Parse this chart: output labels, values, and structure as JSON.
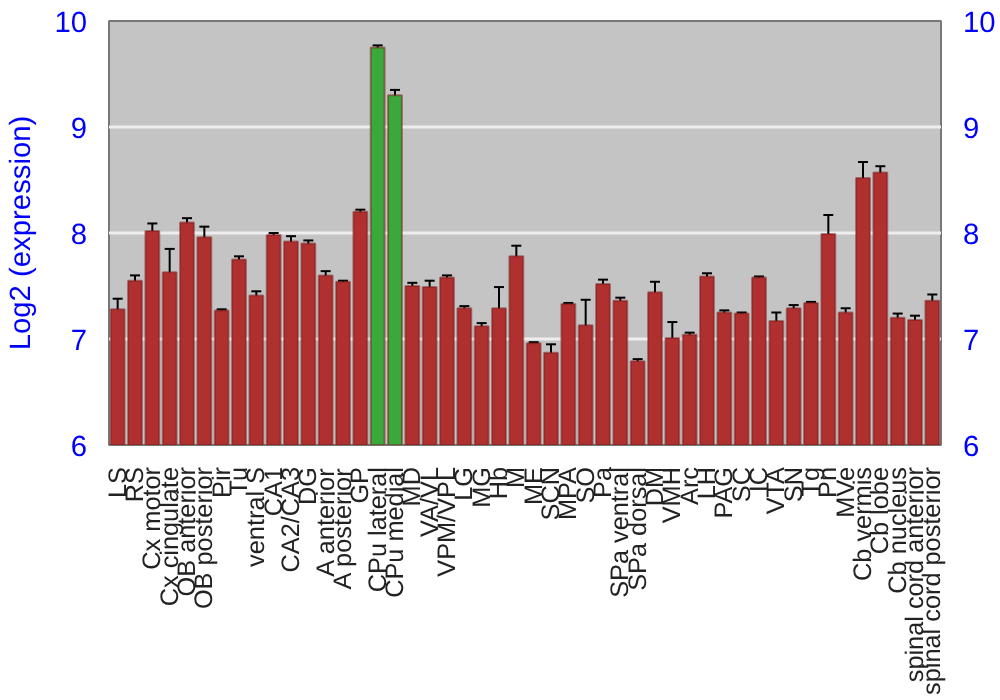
{
  "chart_data": {
    "type": "bar",
    "ylabel": "Log2 (expression)",
    "categories": [
      "LS",
      "RS",
      "Cx motor",
      "Cx cingulate",
      "OB anterior",
      "OB posterior",
      "Pir",
      "Tu",
      "ventral S",
      "CA1",
      "CA2/CA3",
      "DG",
      "A anterior",
      "A posterior",
      "GP",
      "CPu lateral",
      "CPu medial",
      "MD",
      "VA/VL",
      "VPM/VPL",
      "LG",
      "MG",
      "Hb",
      "M",
      "ME",
      "SCN",
      "MPA",
      "SO",
      "Pa",
      "SPa ventral",
      "SPa dorsal",
      "DM",
      "VMH",
      "Arc",
      "LH",
      "PAG",
      "SC",
      "IC",
      "VTA",
      "SN",
      "Tg",
      "Pn",
      "MVe",
      "Cb vermis",
      "Cb lobe",
      "Cb nucleus",
      "spinal cord anterior",
      "spinal cord posterior"
    ],
    "values": [
      7.28,
      7.55,
      8.02,
      7.63,
      8.1,
      7.96,
      7.27,
      7.75,
      7.41,
      7.98,
      7.92,
      7.9,
      7.6,
      7.54,
      8.2,
      9.75,
      9.3,
      7.5,
      7.49,
      7.58,
      7.29,
      7.12,
      7.29,
      7.78,
      6.96,
      6.87,
      7.33,
      7.13,
      7.52,
      7.36,
      6.79,
      7.44,
      7.01,
      7.04,
      7.59,
      7.25,
      7.24,
      7.58,
      7.17,
      7.29,
      7.34,
      7.99,
      7.25,
      8.52,
      8.57,
      7.2,
      7.18,
      7.36
    ],
    "errors": [
      0.1,
      0.05,
      0.07,
      0.22,
      0.04,
      0.1,
      0.01,
      0.03,
      0.04,
      0.02,
      0.05,
      0.03,
      0.04,
      0.01,
      0.02,
      0.02,
      0.05,
      0.03,
      0.06,
      0.02,
      0.02,
      0.03,
      0.2,
      0.1,
      0.01,
      0.08,
      0.01,
      0.24,
      0.04,
      0.03,
      0.02,
      0.1,
      0.15,
      0.02,
      0.03,
      0.02,
      0.01,
      0.01,
      0.08,
      0.03,
      0.01,
      0.18,
      0.04,
      0.15,
      0.06,
      0.04,
      0.04,
      0.06
    ],
    "colors": [
      "#b03030",
      "#b03030",
      "#b03030",
      "#b03030",
      "#b03030",
      "#b03030",
      "#b03030",
      "#b03030",
      "#b03030",
      "#b03030",
      "#b03030",
      "#b03030",
      "#b03030",
      "#b03030",
      "#b03030",
      "#3aa83a",
      "#3aa83a",
      "#b03030",
      "#b03030",
      "#b03030",
      "#b03030",
      "#b03030",
      "#b03030",
      "#b03030",
      "#b03030",
      "#b03030",
      "#b03030",
      "#b03030",
      "#b03030",
      "#b03030",
      "#b03030",
      "#b03030",
      "#b03030",
      "#b03030",
      "#b03030",
      "#b03030",
      "#b03030",
      "#b03030",
      "#b03030",
      "#b03030",
      "#b03030",
      "#b03030",
      "#b03030",
      "#b03030",
      "#b03030",
      "#b03030",
      "#b03030",
      "#b03030"
    ],
    "ylim": [
      6,
      10
    ],
    "yticks": [
      6,
      7,
      8,
      9,
      10
    ],
    "y2lim": [
      6,
      10
    ],
    "y2ticks": [
      6,
      7,
      8,
      9,
      10
    ],
    "grid": "y"
  }
}
